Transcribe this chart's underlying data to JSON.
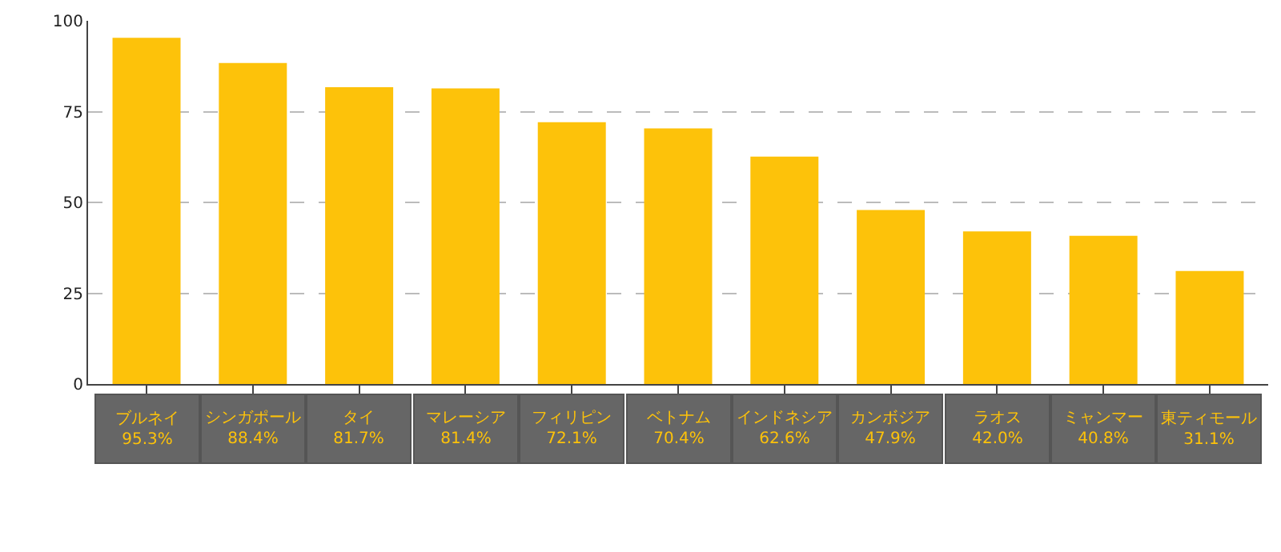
{
  "chart_data": {
    "type": "bar",
    "categories": [
      "ブルネイ",
      "シンガポール",
      "タイ",
      "マレーシア",
      "フィリピン",
      "ベトナム",
      "インドネシア",
      "カンボジア",
      "ラオス",
      "ミャンマー",
      "東ティモール"
    ],
    "values": [
      95.3,
      88.4,
      81.7,
      81.4,
      72.1,
      70.4,
      62.6,
      47.9,
      42.0,
      40.8,
      31.1
    ],
    "value_labels": [
      "95.3%",
      "88.4%",
      "81.7%",
      "81.4%",
      "72.1%",
      "70.4%",
      "62.6%",
      "47.9%",
      "42.0%",
      "40.8%",
      "31.1%"
    ],
    "color": "#fdc20a",
    "ylim": [
      0,
      100
    ],
    "yticks": [
      0,
      25,
      50,
      75,
      100
    ],
    "grid": "y"
  }
}
